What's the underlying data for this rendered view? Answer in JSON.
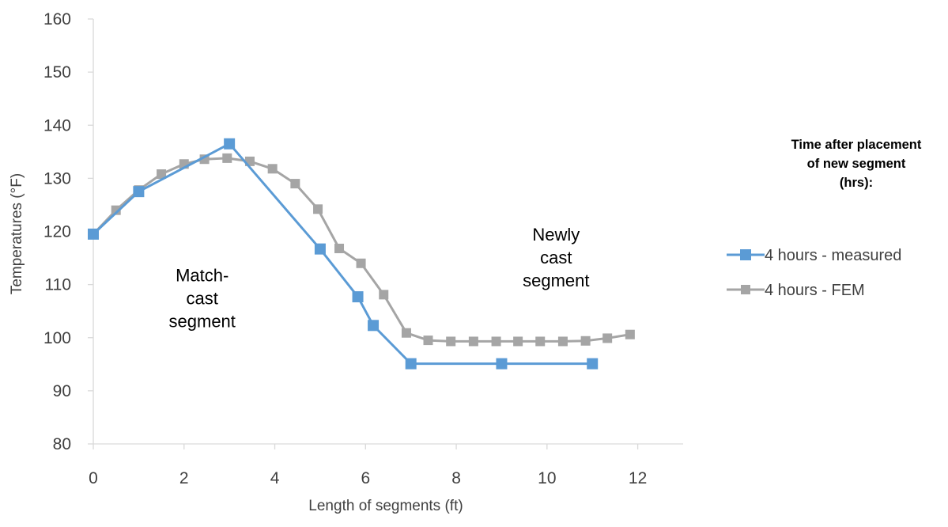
{
  "chart_data": {
    "type": "line",
    "xlabel": "Length of segments (ft)",
    "ylabel": "Temperatures (°F)",
    "xlim": [
      0,
      13
    ],
    "ylim": [
      80,
      160
    ],
    "x_ticks": [
      0,
      2,
      4,
      6,
      8,
      10,
      12
    ],
    "y_ticks": [
      80,
      90,
      100,
      110,
      120,
      130,
      140,
      150,
      160
    ],
    "grid": false,
    "legend_position": "right",
    "legend_title": "Time after placement of new segment (hrs):",
    "legend_title_lines": [
      "Time after placement",
      "of new segment",
      "(hrs):"
    ],
    "annotations": [
      {
        "lines": [
          "Match-",
          "cast",
          "segment"
        ],
        "x": 2.4,
        "y": 110.6
      },
      {
        "lines": [
          "Newly",
          "cast",
          "segment"
        ],
        "x": 10.2,
        "y": 118.3
      }
    ],
    "series": [
      {
        "name": "4 hours  - measured",
        "color": "#5B9BD5",
        "points": [
          [
            0,
            119.5
          ],
          [
            1,
            127.5
          ],
          [
            3,
            136.5
          ],
          [
            5,
            116.7
          ],
          [
            5.83,
            107.7
          ],
          [
            6.17,
            102.3
          ],
          [
            7,
            95.1
          ],
          [
            9,
            95.1
          ],
          [
            11,
            95.1
          ]
        ]
      },
      {
        "name": "4 hours - FEM",
        "color": "#A5A5A5",
        "points": [
          [
            0,
            119.5
          ],
          [
            0.5,
            124.0
          ],
          [
            1,
            127.8
          ],
          [
            1.5,
            130.8
          ],
          [
            2,
            132.7
          ],
          [
            2.45,
            133.6
          ],
          [
            2.95,
            133.8
          ],
          [
            3.45,
            133.2
          ],
          [
            3.95,
            131.8
          ],
          [
            4.45,
            129.0
          ],
          [
            4.95,
            124.2
          ],
          [
            5.42,
            116.8
          ],
          [
            5.9,
            114.0
          ],
          [
            6.4,
            108.1
          ],
          [
            6.9,
            100.9
          ],
          [
            7.38,
            99.5
          ],
          [
            7.88,
            99.3
          ],
          [
            8.38,
            99.3
          ],
          [
            8.88,
            99.3
          ],
          [
            9.36,
            99.3
          ],
          [
            9.85,
            99.3
          ],
          [
            10.35,
            99.3
          ],
          [
            10.85,
            99.4
          ],
          [
            11.33,
            99.9
          ],
          [
            11.83,
            100.6
          ]
        ]
      }
    ]
  }
}
